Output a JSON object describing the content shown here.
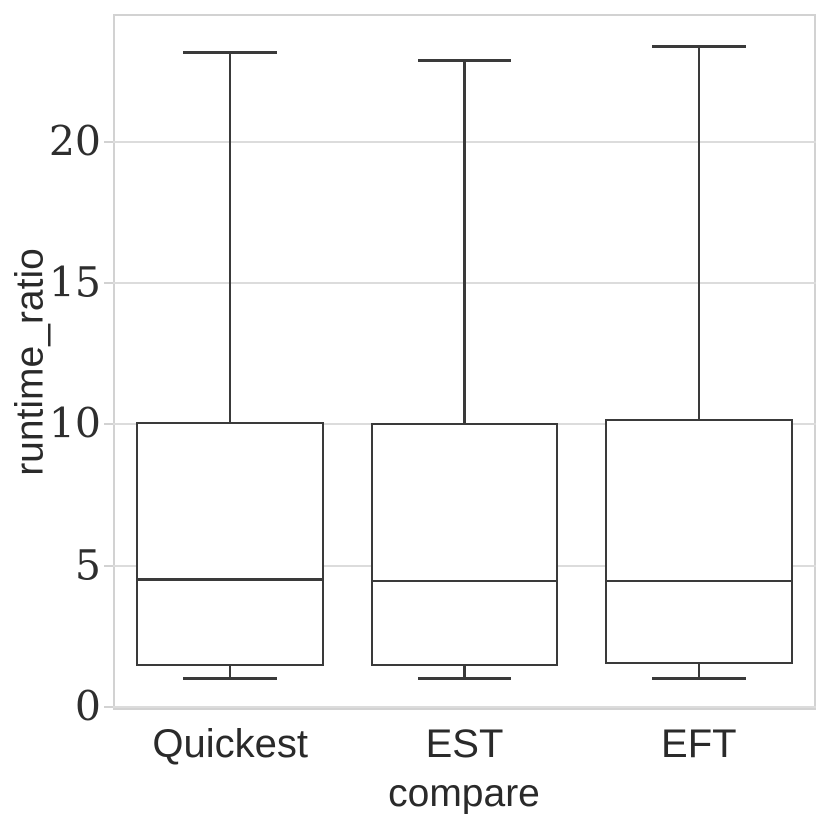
{
  "chart_data": {
    "type": "box",
    "title": "",
    "xlabel": "compare",
    "ylabel": "runtime_ratio",
    "categories": [
      "Quickest",
      "EST",
      "EFT"
    ],
    "yticks": [
      0,
      5,
      10,
      15,
      20
    ],
    "ylim": [
      -0.12,
      24.55
    ],
    "grid": true,
    "legend": false,
    "series": [
      {
        "name": "Quickest",
        "whisker_low": 1.0,
        "q1": 1.45,
        "median": 4.5,
        "q3": 10.1,
        "whisker_high": 23.2
      },
      {
        "name": "EST",
        "whisker_low": 1.0,
        "q1": 1.45,
        "median": 4.45,
        "q3": 10.05,
        "whisker_high": 22.9
      },
      {
        "name": "EFT",
        "whisker_low": 1.0,
        "q1": 1.5,
        "median": 4.45,
        "q3": 10.2,
        "whisker_high": 23.4
      }
    ],
    "colors": {
      "line": "#3a3a3a",
      "grid": "#dcdcdc",
      "spine": "#d2d2d2",
      "text": "#2a2a2a",
      "background": "#ffffff"
    }
  }
}
